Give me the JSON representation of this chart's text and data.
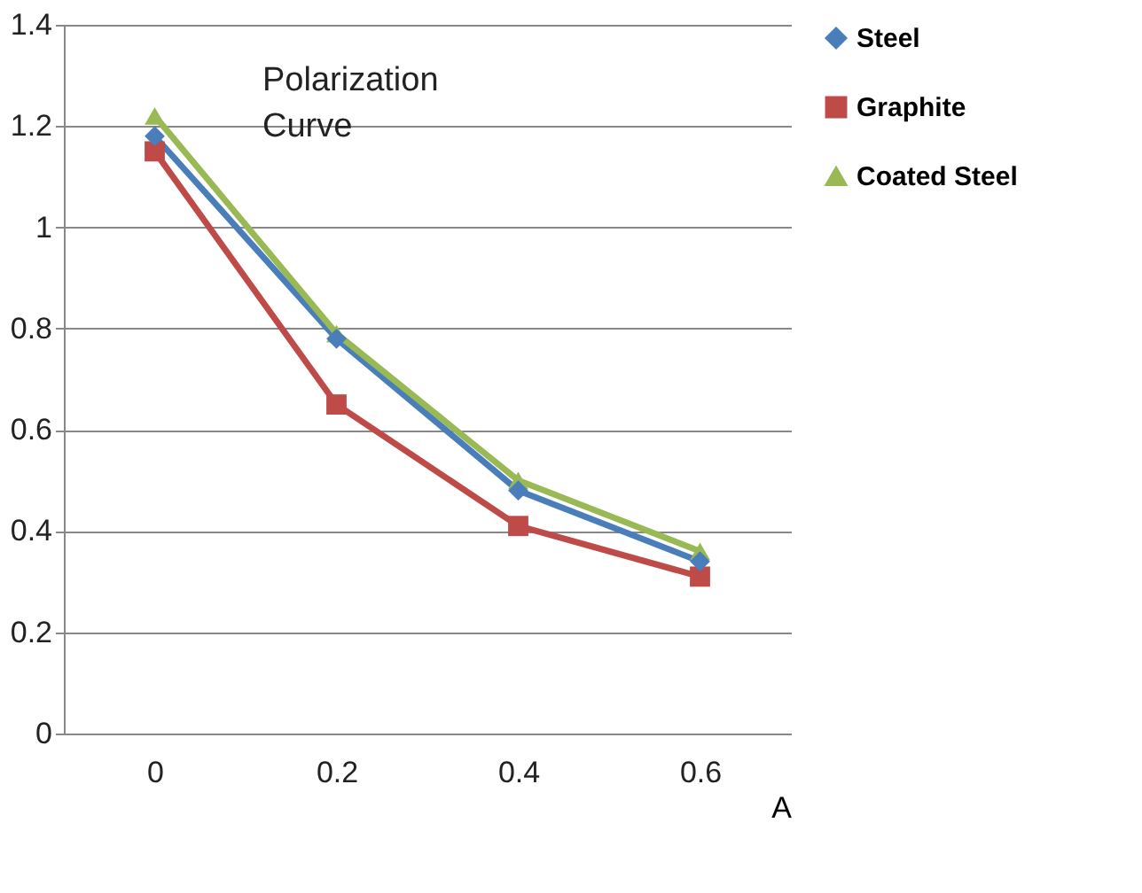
{
  "chart_data": {
    "type": "line",
    "title": "Polarization Curve",
    "xlabel": "A",
    "categories": [
      "0",
      "0.2",
      "0.4",
      "0.6"
    ],
    "series": [
      {
        "name": "Steel",
        "color": "#4a7ebb",
        "marker": "diamond",
        "values": [
          1.18,
          0.78,
          0.48,
          0.34
        ]
      },
      {
        "name": "Graphite",
        "color": "#be4b48",
        "marker": "square",
        "values": [
          1.15,
          0.65,
          0.41,
          0.31
        ]
      },
      {
        "name": "Coated Steel",
        "color": "#98b954",
        "marker": "triangle",
        "values": [
          1.22,
          0.79,
          0.5,
          0.36
        ]
      }
    ],
    "ylim": [
      0,
      1.4
    ],
    "yticks": [
      0,
      0.2,
      0.4,
      0.6,
      0.8,
      1,
      1.2,
      1.4
    ],
    "grid": "y",
    "legend": "right"
  }
}
